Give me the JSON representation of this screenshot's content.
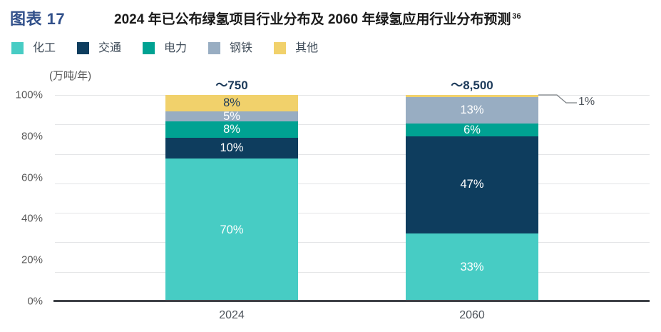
{
  "header": {
    "figure_label": "图表 17",
    "title": "2024 年已公布绿氢项目行业分布及 2060 年绿氢应用行业分布预测",
    "title_superscript": "36"
  },
  "legend": {
    "items": [
      {
        "label": "化工",
        "color": "#47CCC4"
      },
      {
        "label": "交通",
        "color": "#0E3D5E"
      },
      {
        "label": "电力",
        "color": "#00A292"
      },
      {
        "label": "钢铁",
        "color": "#98ADC2"
      },
      {
        "label": "其他",
        "color": "#F1D16B"
      }
    ]
  },
  "axis": {
    "unit_label": "(万吨/年)",
    "y_ticks": [
      "100%",
      "80%",
      "60%",
      "40%",
      "20%",
      "0%"
    ],
    "x_ticks": [
      "2024",
      "2060"
    ]
  },
  "chart_data": {
    "type": "bar",
    "stacked": true,
    "unit": "percent",
    "title": "2024 年已公布绿氢项目行业分布及 2060 年绿氢应用行业分布预测",
    "categories": [
      "2024",
      "2060"
    ],
    "bar_totals": [
      {
        "category": "2024",
        "label": "～750"
      },
      {
        "category": "2060",
        "label": "～8,500"
      }
    ],
    "series": [
      {
        "name": "化工",
        "color": "#47CCC4",
        "label_color": "#FFFFFF",
        "values": [
          70,
          33
        ]
      },
      {
        "name": "交通",
        "color": "#0E3D5E",
        "label_color": "#FFFFFF",
        "values": [
          10,
          47
        ]
      },
      {
        "name": "电力",
        "color": "#00A292",
        "label_color": "#FFFFFF",
        "values": [
          8,
          6
        ]
      },
      {
        "name": "钢铁",
        "color": "#98ADC2",
        "label_color": "#FFFFFF",
        "values": [
          5,
          13
        ]
      },
      {
        "name": "其他",
        "color": "#F1D16B",
        "label_color": "#1C3A5A",
        "values": [
          8,
          1
        ]
      }
    ],
    "ylim": [
      0,
      100
    ],
    "ytick_interval_percent": 20,
    "grid": true,
    "legend_position": "top",
    "annotations": [
      {
        "text": "1%",
        "category": "2060",
        "series": "其他"
      }
    ]
  }
}
